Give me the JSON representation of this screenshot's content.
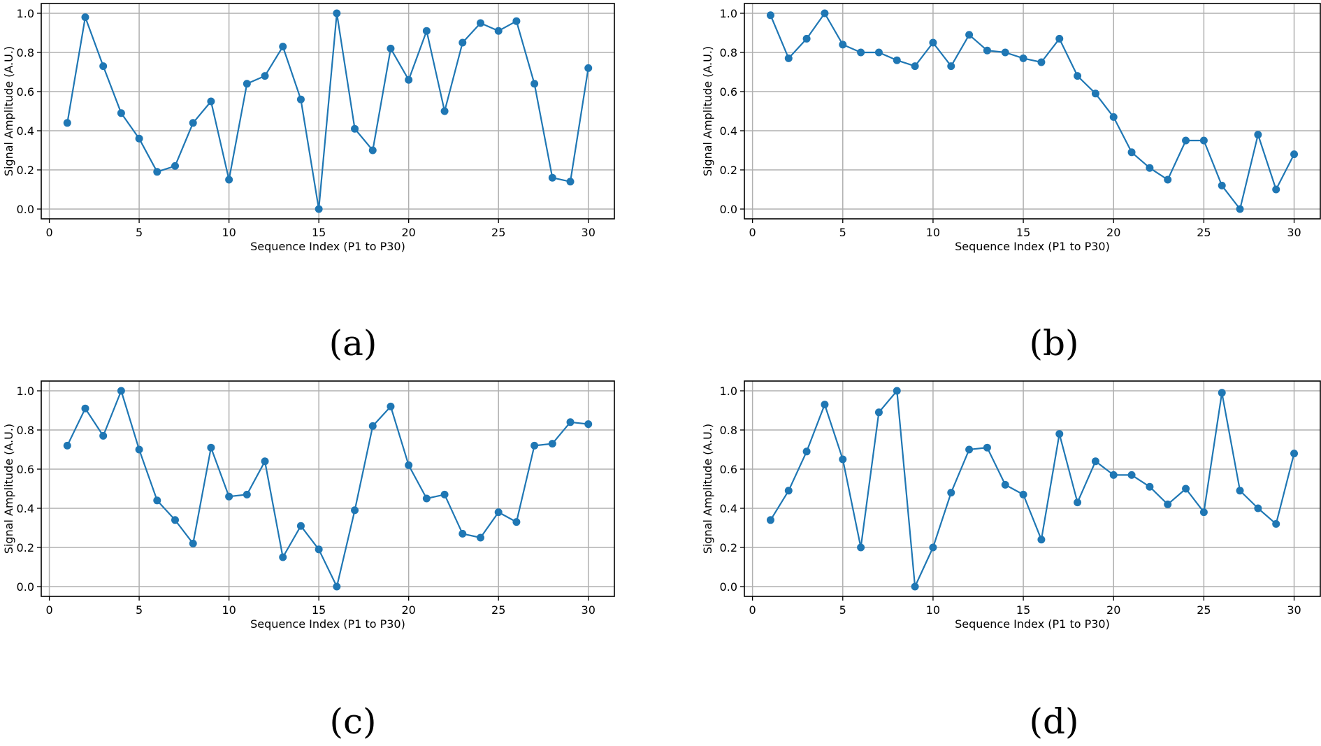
{
  "figure": {
    "colors": {
      "line": "#1f77b4",
      "marker": "#1f77b4",
      "grid": "#b0b0b0",
      "axis": "#000000"
    }
  },
  "chart_data": [
    {
      "type": "line",
      "caption": "(a)",
      "title": "",
      "xlabel": "Sequence Index (P1 to P30)",
      "ylabel": "Signal Amplitude (A.U.)",
      "xlim": [
        -0.45,
        31.45
      ],
      "ylim": [
        -0.05,
        1.05
      ],
      "xticks": [
        0,
        5,
        10,
        15,
        20,
        25,
        30
      ],
      "xtick_labels": [
        "0",
        "5",
        "10",
        "15",
        "20",
        "25",
        "30"
      ],
      "yticks": [
        0.0,
        0.2,
        0.4,
        0.6,
        0.8,
        1.0
      ],
      "ytick_labels": [
        "0.0",
        "0.2",
        "0.4",
        "0.6",
        "0.8",
        "1.0"
      ],
      "grid": true,
      "x": [
        1,
        2,
        3,
        4,
        5,
        6,
        7,
        8,
        9,
        10,
        11,
        12,
        13,
        14,
        15,
        16,
        17,
        18,
        19,
        20,
        21,
        22,
        23,
        24,
        25,
        26,
        27,
        28,
        29,
        30
      ],
      "values": [
        0.44,
        0.98,
        0.73,
        0.49,
        0.36,
        0.19,
        0.22,
        0.44,
        0.55,
        0.15,
        0.64,
        0.68,
        0.83,
        0.56,
        0.0,
        1.0,
        0.41,
        0.3,
        0.82,
        0.66,
        0.91,
        0.5,
        0.85,
        0.95,
        0.91,
        0.96,
        0.64,
        0.16,
        0.14,
        0.72
      ]
    },
    {
      "type": "line",
      "caption": "(b)",
      "title": "",
      "xlabel": "Sequence Index (P1 to P30)",
      "ylabel": "Signal Amplitude (A.U.)",
      "xlim": [
        -0.45,
        31.45
      ],
      "ylim": [
        -0.05,
        1.05
      ],
      "xticks": [
        0,
        5,
        10,
        15,
        20,
        25,
        30
      ],
      "xtick_labels": [
        "0",
        "5",
        "10",
        "15",
        "20",
        "25",
        "30"
      ],
      "yticks": [
        0.0,
        0.2,
        0.4,
        0.6,
        0.8,
        1.0
      ],
      "ytick_labels": [
        "0.0",
        "0.2",
        "0.4",
        "0.6",
        "0.8",
        "1.0"
      ],
      "grid": true,
      "x": [
        1,
        2,
        3,
        4,
        5,
        6,
        7,
        8,
        9,
        10,
        11,
        12,
        13,
        14,
        15,
        16,
        17,
        18,
        19,
        20,
        21,
        22,
        23,
        24,
        25,
        26,
        27,
        28,
        29,
        30
      ],
      "values": [
        0.99,
        0.77,
        0.87,
        1.0,
        0.84,
        0.8,
        0.8,
        0.76,
        0.73,
        0.85,
        0.73,
        0.89,
        0.81,
        0.8,
        0.77,
        0.75,
        0.87,
        0.68,
        0.59,
        0.47,
        0.29,
        0.21,
        0.15,
        0.35,
        0.35,
        0.12,
        0.0,
        0.38,
        0.1,
        0.28
      ]
    },
    {
      "type": "line",
      "caption": "(c)",
      "title": "",
      "xlabel": "Sequence Index (P1 to P30)",
      "ylabel": "Signal Amplitude (A.U.)",
      "xlim": [
        -0.45,
        31.45
      ],
      "ylim": [
        -0.05,
        1.05
      ],
      "xticks": [
        0,
        5,
        10,
        15,
        20,
        25,
        30
      ],
      "xtick_labels": [
        "0",
        "5",
        "10",
        "15",
        "20",
        "25",
        "30"
      ],
      "yticks": [
        0.0,
        0.2,
        0.4,
        0.6,
        0.8,
        1.0
      ],
      "ytick_labels": [
        "0.0",
        "0.2",
        "0.4",
        "0.6",
        "0.8",
        "1.0"
      ],
      "grid": true,
      "x": [
        1,
        2,
        3,
        4,
        5,
        6,
        7,
        8,
        9,
        10,
        11,
        12,
        13,
        14,
        15,
        16,
        17,
        18,
        19,
        20,
        21,
        22,
        23,
        24,
        25,
        26,
        27,
        28,
        29,
        30
      ],
      "values": [
        0.72,
        0.91,
        0.77,
        1.0,
        0.7,
        0.44,
        0.34,
        0.22,
        0.71,
        0.46,
        0.47,
        0.64,
        0.15,
        0.31,
        0.19,
        0.0,
        0.39,
        0.82,
        0.92,
        0.62,
        0.45,
        0.47,
        0.27,
        0.25,
        0.38,
        0.33,
        0.72,
        0.73,
        0.84,
        0.83
      ]
    },
    {
      "type": "line",
      "caption": "(d)",
      "title": "",
      "xlabel": "Sequence Index (P1 to P30)",
      "ylabel": "Signal Amplitude (A.U.)",
      "xlim": [
        -0.45,
        31.45
      ],
      "ylim": [
        -0.05,
        1.05
      ],
      "xticks": [
        0,
        5,
        10,
        15,
        20,
        25,
        30
      ],
      "xtick_labels": [
        "0",
        "5",
        "10",
        "15",
        "20",
        "25",
        "30"
      ],
      "yticks": [
        0.0,
        0.2,
        0.4,
        0.6,
        0.8,
        1.0
      ],
      "ytick_labels": [
        "0.0",
        "0.2",
        "0.4",
        "0.6",
        "0.8",
        "1.0"
      ],
      "grid": true,
      "x": [
        1,
        2,
        3,
        4,
        5,
        6,
        7,
        8,
        9,
        10,
        11,
        12,
        13,
        14,
        15,
        16,
        17,
        18,
        19,
        20,
        21,
        22,
        23,
        24,
        25,
        26,
        27,
        28,
        29,
        30
      ],
      "values": [
        0.34,
        0.49,
        0.69,
        0.93,
        0.65,
        0.2,
        0.89,
        1.0,
        0.0,
        0.2,
        0.48,
        0.7,
        0.71,
        0.52,
        0.47,
        0.24,
        0.78,
        0.43,
        0.64,
        0.57,
        0.57,
        0.51,
        0.42,
        0.5,
        0.38,
        0.99,
        0.49,
        0.4,
        0.32,
        0.68
      ]
    }
  ]
}
